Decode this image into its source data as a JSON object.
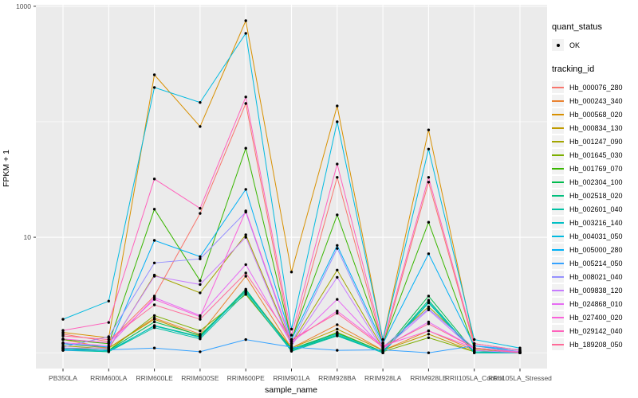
{
  "chart_data": {
    "type": "line",
    "title": "",
    "xlabel": "sample_name",
    "ylabel": "FPKM + 1",
    "y_scale": "log10",
    "ylim": [
      0.73,
      1030
    ],
    "grid": true,
    "legend_position": "right",
    "y_ticks": [
      {
        "value": 1000,
        "label": "1000"
      },
      {
        "value": 10,
        "label": "10"
      }
    ],
    "y_minor_gridlines": [
      1,
      100
    ],
    "categories": [
      "PB350LA",
      "RRIM600LA",
      "RRIM600LE",
      "RRIM600SE",
      "RRIM600PE",
      "RRIM901LA",
      "RRIM928BA",
      "RRIM928LA",
      "RRIM928LE",
      "RRII105LA_Control",
      "RRII105LA_Stressed"
    ],
    "series": [
      {
        "name": "Hb_000076_280",
        "color": "#F8766D",
        "values": [
          1.45,
          1.25,
          3.1,
          16.1,
          144,
          1.25,
          33,
          1.15,
          30,
          1.15,
          1.02
        ]
      },
      {
        "name": "Hb_000243_340",
        "color": "#EA8331",
        "values": [
          1.3,
          1.1,
          2.0,
          1.45,
          4.6,
          1.1,
          1.75,
          1.05,
          1.55,
          1.05,
          1.0
        ]
      },
      {
        "name": "Hb_000568_020",
        "color": "#D89000",
        "values": [
          1.5,
          1.35,
          255,
          91,
          750,
          5.0,
          137,
          1.3,
          85,
          1.2,
          1.05
        ]
      },
      {
        "name": "Hb_000834_130",
        "color": "#C09B00",
        "values": [
          1.2,
          1.1,
          1.95,
          1.4,
          3.5,
          1.1,
          1.6,
          1.05,
          1.45,
          1.02,
          1.0
        ]
      },
      {
        "name": "Hb_001247_090",
        "color": "#A3A500",
        "values": [
          1.15,
          1.08,
          4.7,
          3.3,
          10.5,
          1.2,
          5.2,
          1.1,
          2.5,
          1.08,
          1.0
        ]
      },
      {
        "name": "Hb_001645_030",
        "color": "#7CAE00",
        "values": [
          1.1,
          1.05,
          2.1,
          1.55,
          3.2,
          1.05,
          1.5,
          1.02,
          1.35,
          1.02,
          1.0
        ]
      },
      {
        "name": "Hb_001769_070",
        "color": "#39B600",
        "values": [
          1.3,
          1.2,
          17.5,
          4.2,
          59,
          1.3,
          15.6,
          1.2,
          13.5,
          1.1,
          1.02
        ]
      },
      {
        "name": "Hb_002304_100",
        "color": "#00BB4E",
        "values": [
          1.1,
          1.05,
          1.85,
          1.42,
          3.4,
          1.08,
          1.48,
          1.02,
          3.1,
          1.02,
          1.0
        ]
      },
      {
        "name": "Hb_002518_020",
        "color": "#00BF7D",
        "values": [
          1.06,
          1.02,
          1.72,
          1.38,
          3.55,
          1.05,
          1.42,
          1.0,
          2.85,
          1.0,
          1.0
        ]
      },
      {
        "name": "Hb_002601_040",
        "color": "#00C1A3",
        "values": [
          1.05,
          1.02,
          1.65,
          1.32,
          3.3,
          1.03,
          1.4,
          1.0,
          2.7,
          1.0,
          1.0
        ]
      },
      {
        "name": "Hb_003216_140",
        "color": "#00BFC4",
        "values": [
          1.08,
          1.04,
          1.7,
          1.36,
          3.45,
          1.06,
          1.45,
          1.0,
          2.75,
          1.02,
          1.0
        ]
      },
      {
        "name": "Hb_004031_050",
        "color": "#00BAE0",
        "values": [
          1.95,
          2.8,
          198,
          147,
          583,
          1.6,
          100,
          1.3,
          58,
          1.3,
          1.1
        ]
      },
      {
        "name": "Hb_005000_280",
        "color": "#00B0F6",
        "values": [
          1.2,
          1.12,
          9.4,
          6.8,
          26,
          1.3,
          8.5,
          1.2,
          7.2,
          1.15,
          1.02
        ]
      },
      {
        "name": "Hb_005214_050",
        "color": "#35A2FF",
        "values": [
          1.05,
          1.06,
          1.1,
          1.02,
          1.3,
          1.12,
          1.05,
          1.06,
          1.0,
          1.15,
          1.06
        ]
      },
      {
        "name": "Hb_008021_040",
        "color": "#9590FF",
        "values": [
          1.12,
          1.38,
          6.0,
          6.5,
          16.5,
          1.2,
          8.0,
          1.12,
          2.4,
          1.1,
          1.0
        ]
      },
      {
        "name": "Hb_009838_120",
        "color": "#C77CFF",
        "values": [
          1.1,
          1.1,
          4.6,
          3.9,
          10.0,
          1.15,
          4.5,
          1.06,
          2.35,
          1.05,
          1.0
        ]
      },
      {
        "name": "Hb_024868_010",
        "color": "#E76BF3",
        "values": [
          1.22,
          1.15,
          3.0,
          2.1,
          5.8,
          1.2,
          2.9,
          1.1,
          1.85,
          1.1,
          1.02
        ]
      },
      {
        "name": "Hb_027400_020",
        "color": "#FA62DB",
        "values": [
          1.32,
          1.22,
          2.9,
          2.05,
          16.9,
          1.25,
          2.3,
          1.15,
          1.55,
          1.1,
          1.0
        ]
      },
      {
        "name": "Hb_029142_040",
        "color": "#FF62BC",
        "values": [
          1.56,
          1.83,
          32,
          17.8,
          164,
          1.42,
          43,
          1.22,
          33,
          1.2,
          1.05
        ]
      },
      {
        "name": "Hb_189208_050",
        "color": "#FF6A98",
        "values": [
          1.4,
          1.3,
          2.6,
          1.95,
          4.9,
          1.3,
          2.2,
          1.12,
          1.78,
          1.1,
          1.0
        ]
      }
    ],
    "colors": {
      "panel_bg": "#EBEBEB",
      "gridline": "#FFFFFF",
      "point": "#000000",
      "axis_text": "#4D4D4D",
      "tick_mark": "#333333",
      "legend_key_bg": "#F2F2F2"
    }
  },
  "legend": {
    "quant_status": {
      "title": "quant_status",
      "entries": [
        {
          "label": "OK",
          "marker": "point"
        }
      ]
    },
    "tracking_id": {
      "title": "tracking_id"
    }
  }
}
